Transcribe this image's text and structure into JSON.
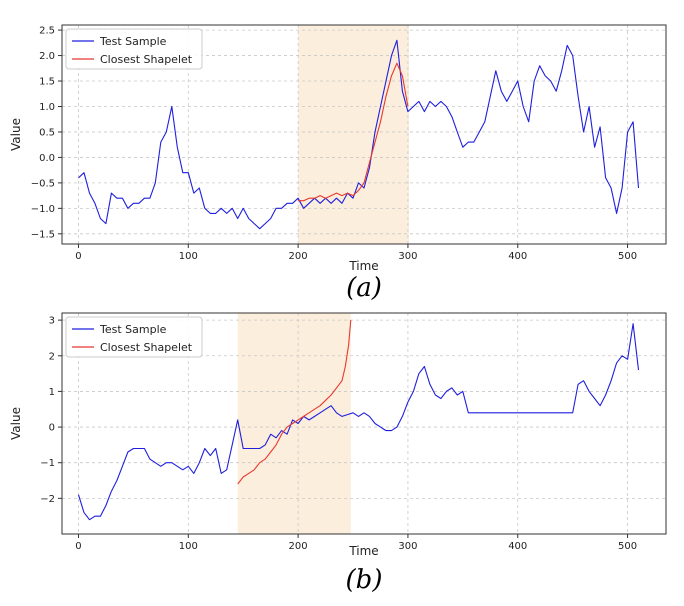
{
  "chart_data": [
    {
      "id": "a",
      "type": "line",
      "caption": "(a)",
      "xlabel": "Time",
      "ylabel": "Value",
      "xlim": [
        -15,
        535
      ],
      "ylim": [
        -1.7,
        2.6
      ],
      "xticks": [
        0,
        100,
        200,
        300,
        400,
        500
      ],
      "yticks": [
        -1.5,
        -1.0,
        -0.5,
        0.0,
        0.5,
        1.0,
        1.5,
        2.0,
        2.5
      ],
      "ytick_labels": [
        "−1.5",
        "−1.0",
        "−0.5",
        "0.0",
        "0.5",
        "1.0",
        "1.5",
        "2.0",
        "2.5"
      ],
      "grid": true,
      "legend_position": "top-left",
      "highlight_range": [
        200,
        301
      ],
      "series": [
        {
          "name": "Test Sample",
          "color": "#1f1fdd",
          "x": [
            0,
            5,
            10,
            15,
            20,
            25,
            30,
            35,
            40,
            45,
            50,
            55,
            60,
            65,
            70,
            75,
            80,
            85,
            90,
            95,
            100,
            105,
            110,
            115,
            120,
            125,
            130,
            135,
            140,
            145,
            150,
            155,
            160,
            165,
            170,
            175,
            180,
            185,
            190,
            195,
            200,
            205,
            210,
            215,
            220,
            225,
            230,
            235,
            240,
            245,
            250,
            255,
            260,
            265,
            270,
            275,
            280,
            285,
            290,
            295,
            300,
            305,
            310,
            315,
            320,
            325,
            330,
            335,
            340,
            345,
            350,
            355,
            360,
            365,
            370,
            375,
            380,
            385,
            390,
            395,
            400,
            405,
            410,
            415,
            420,
            425,
            430,
            435,
            440,
            445,
            450,
            455,
            460,
            465,
            470,
            475,
            480,
            485,
            490,
            495,
            500,
            505,
            510
          ],
          "y": [
            -0.4,
            -0.3,
            -0.7,
            -0.9,
            -1.2,
            -1.3,
            -0.7,
            -0.8,
            -0.8,
            -1.0,
            -0.9,
            -0.9,
            -0.8,
            -0.8,
            -0.5,
            0.3,
            0.5,
            1.0,
            0.2,
            -0.3,
            -0.3,
            -0.7,
            -0.6,
            -1.0,
            -1.1,
            -1.1,
            -1.0,
            -1.1,
            -1.0,
            -1.2,
            -1.0,
            -1.2,
            -1.3,
            -1.4,
            -1.3,
            -1.2,
            -1.0,
            -1.0,
            -0.9,
            -0.9,
            -0.8,
            -1.0,
            -0.9,
            -0.8,
            -0.9,
            -0.8,
            -0.9,
            -0.8,
            -0.9,
            -0.7,
            -0.8,
            -0.5,
            -0.6,
            -0.2,
            0.5,
            1.0,
            1.5,
            2.0,
            2.3,
            1.3,
            0.9,
            1.0,
            1.1,
            0.9,
            1.1,
            1.0,
            1.1,
            1.0,
            0.8,
            0.5,
            0.2,
            0.3,
            0.3,
            0.5,
            0.7,
            1.2,
            1.7,
            1.3,
            1.1,
            1.3,
            1.5,
            1.0,
            0.7,
            1.5,
            1.8,
            1.6,
            1.5,
            1.3,
            1.7,
            2.2,
            2.0,
            1.2,
            0.5,
            1.0,
            0.2,
            0.6,
            -0.4,
            -0.6,
            -1.1,
            -0.6,
            0.5,
            0.7,
            -0.6
          ]
        },
        {
          "name": "Closest Shapelet",
          "color": "#e8382e",
          "x": [
            200,
            205,
            210,
            215,
            220,
            225,
            230,
            235,
            240,
            245,
            250,
            255,
            260,
            265,
            270,
            275,
            280,
            285,
            290,
            295,
            300
          ],
          "y": [
            -0.85,
            -0.85,
            -0.8,
            -0.8,
            -0.75,
            -0.8,
            -0.75,
            -0.7,
            -0.75,
            -0.7,
            -0.75,
            -0.65,
            -0.5,
            -0.1,
            0.3,
            0.7,
            1.2,
            1.6,
            1.85,
            1.6,
            1.0
          ]
        }
      ]
    },
    {
      "id": "b",
      "type": "line",
      "caption": "(b)",
      "xlabel": "Time",
      "ylabel": "Value",
      "xlim": [
        -15,
        535
      ],
      "ylim": [
        -3.0,
        3.2
      ],
      "xticks": [
        0,
        100,
        200,
        300,
        400,
        500
      ],
      "yticks": [
        -2,
        -1,
        0,
        1,
        2,
        3
      ],
      "ytick_labels": [
        "−2",
        "−1",
        "0",
        "1",
        "2",
        "3"
      ],
      "grid": true,
      "legend_position": "top-left",
      "highlight_range": [
        145,
        248
      ],
      "series": [
        {
          "name": "Test Sample",
          "color": "#1f1fdd",
          "x": [
            0,
            5,
            10,
            15,
            20,
            25,
            30,
            35,
            40,
            45,
            50,
            55,
            60,
            65,
            70,
            75,
            80,
            85,
            90,
            95,
            100,
            105,
            110,
            115,
            120,
            125,
            130,
            135,
            140,
            145,
            150,
            155,
            160,
            165,
            170,
            175,
            180,
            185,
            190,
            195,
            200,
            205,
            210,
            215,
            220,
            225,
            230,
            235,
            240,
            245,
            250,
            255,
            260,
            265,
            270,
            275,
            280,
            285,
            290,
            295,
            300,
            305,
            310,
            315,
            320,
            325,
            330,
            335,
            340,
            345,
            350,
            355,
            450,
            455,
            460,
            465,
            470,
            475,
            480,
            485,
            490,
            495,
            500,
            505,
            510
          ],
          "y": [
            -1.9,
            -2.4,
            -2.6,
            -2.5,
            -2.5,
            -2.2,
            -1.8,
            -1.5,
            -1.1,
            -0.7,
            -0.6,
            -0.6,
            -0.6,
            -0.9,
            -1.0,
            -1.1,
            -1.0,
            -1.0,
            -1.1,
            -1.2,
            -1.1,
            -1.3,
            -1.0,
            -0.6,
            -0.8,
            -0.6,
            -1.3,
            -1.2,
            -0.5,
            0.2,
            -0.6,
            -0.6,
            -0.6,
            -0.6,
            -0.5,
            -0.2,
            -0.3,
            -0.1,
            -0.2,
            0.2,
            0.1,
            0.3,
            0.2,
            0.3,
            0.4,
            0.5,
            0.6,
            0.4,
            0.3,
            0.35,
            0.4,
            0.3,
            0.4,
            0.3,
            0.1,
            0.0,
            -0.1,
            -0.1,
            0.0,
            0.3,
            0.7,
            1.0,
            1.5,
            1.7,
            1.2,
            0.9,
            0.8,
            1.0,
            1.1,
            0.9,
            1.0,
            0.4,
            0.4,
            1.2,
            1.3,
            1.0,
            0.8,
            0.6,
            0.9,
            1.3,
            1.8,
            2.0,
            1.9,
            2.9,
            1.6
          ]
        },
        {
          "name": "Closest Shapelet",
          "color": "#e8382e",
          "x": [
            145,
            150,
            155,
            160,
            165,
            170,
            175,
            180,
            185,
            190,
            195,
            200,
            205,
            210,
            215,
            220,
            225,
            230,
            235,
            240,
            243,
            246,
            248
          ],
          "y": [
            -1.6,
            -1.4,
            -1.3,
            -1.2,
            -1.0,
            -0.9,
            -0.7,
            -0.5,
            -0.2,
            0.0,
            0.1,
            0.2,
            0.3,
            0.4,
            0.5,
            0.6,
            0.75,
            0.9,
            1.1,
            1.3,
            1.7,
            2.3,
            3.0
          ]
        }
      ]
    }
  ]
}
